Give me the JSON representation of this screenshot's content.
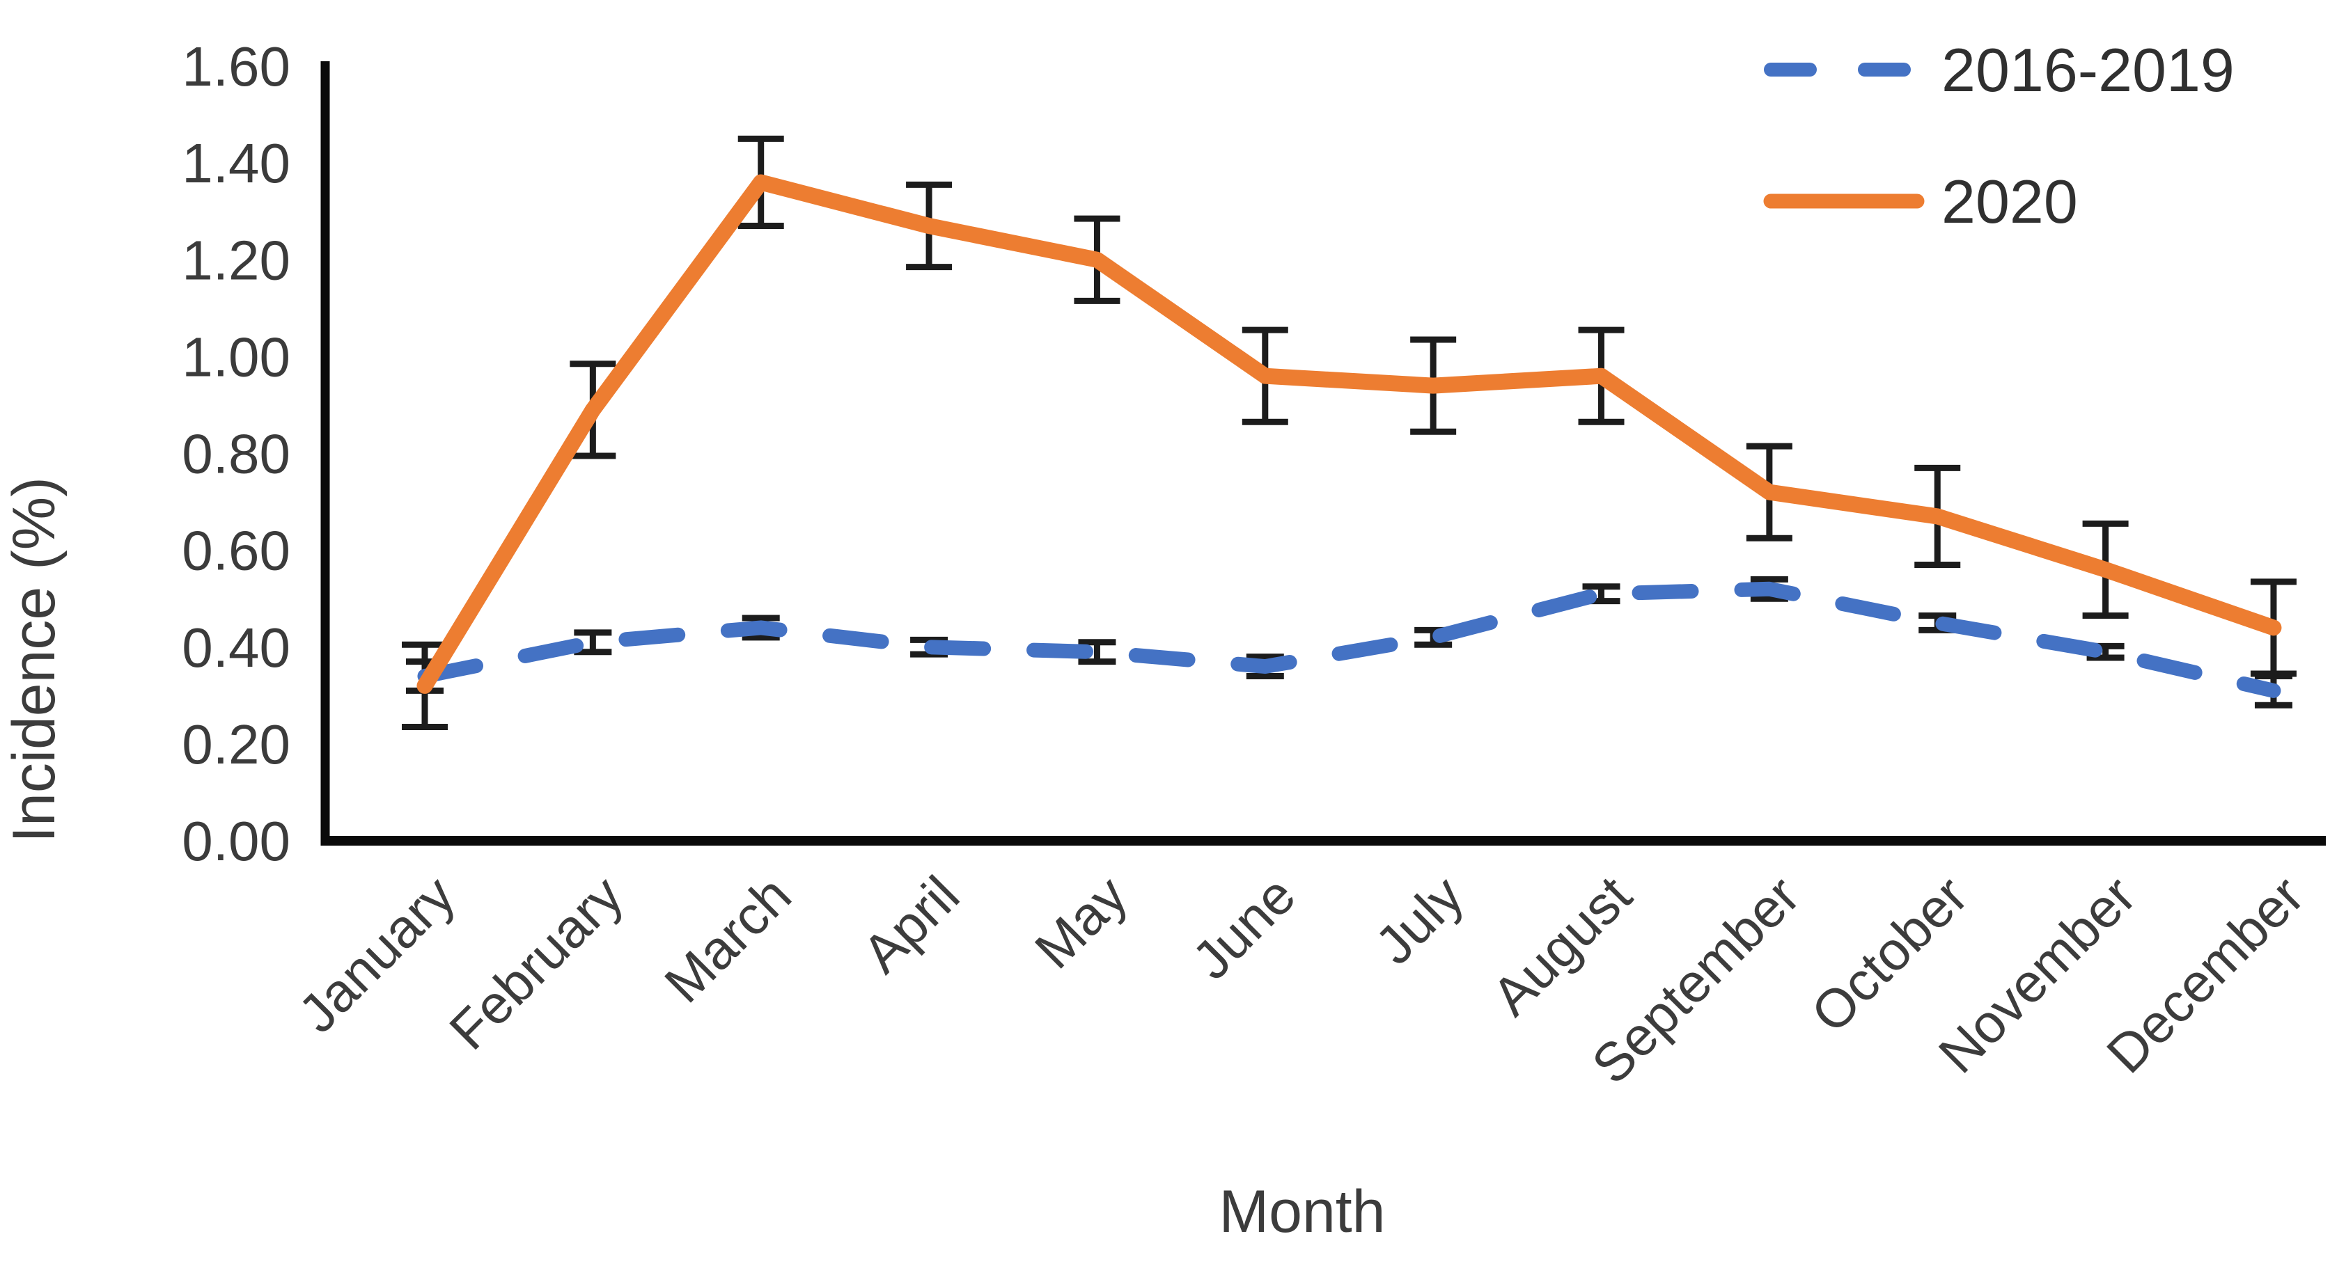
{
  "figure": {
    "background_color": "#ffffff"
  },
  "chart_data": {
    "type": "line",
    "title": "",
    "xlabel": "Month",
    "ylabel": "Incidence (%)",
    "grid": false,
    "legend_position": "top-right",
    "categories": [
      "January",
      "February",
      "March",
      "April",
      "May",
      "June",
      "July",
      "August",
      "September",
      "October",
      "November",
      "December"
    ],
    "series": [
      {
        "name": "2016-2019",
        "color": "#4472C4",
        "line_style": "dashed",
        "values": [
          0.34,
          0.41,
          0.44,
          0.4,
          0.39,
          0.36,
          0.42,
          0.51,
          0.52,
          0.45,
          0.39,
          0.31
        ],
        "errors": [
          0.03,
          0.02,
          0.02,
          0.015,
          0.02,
          0.02,
          0.015,
          0.015,
          0.02,
          0.015,
          0.012,
          0.03
        ]
      },
      {
        "name": "2020",
        "color": "#ED7D31",
        "line_style": "solid",
        "values": [
          0.32,
          0.89,
          1.36,
          1.27,
          1.2,
          0.96,
          0.94,
          0.96,
          0.72,
          0.67,
          0.56,
          0.44
        ],
        "errors": [
          0.085,
          0.095,
          0.09,
          0.085,
          0.085,
          0.095,
          0.095,
          0.095,
          0.095,
          0.1,
          0.095,
          0.095
        ]
      }
    ],
    "y_axis": {
      "min": 0.0,
      "max": 1.6,
      "step": 0.2,
      "tick_labels": [
        "0.00",
        "0.20",
        "0.40",
        "0.60",
        "0.80",
        "1.00",
        "1.20",
        "1.40",
        "1.60"
      ]
    },
    "error_bar_color": "#1c1c1c",
    "axis_color": "#0a0a0a",
    "tick_text_color": "#3b3b3b",
    "label_text_color": "#3c3c3c",
    "legend_text_color": "#303030"
  }
}
